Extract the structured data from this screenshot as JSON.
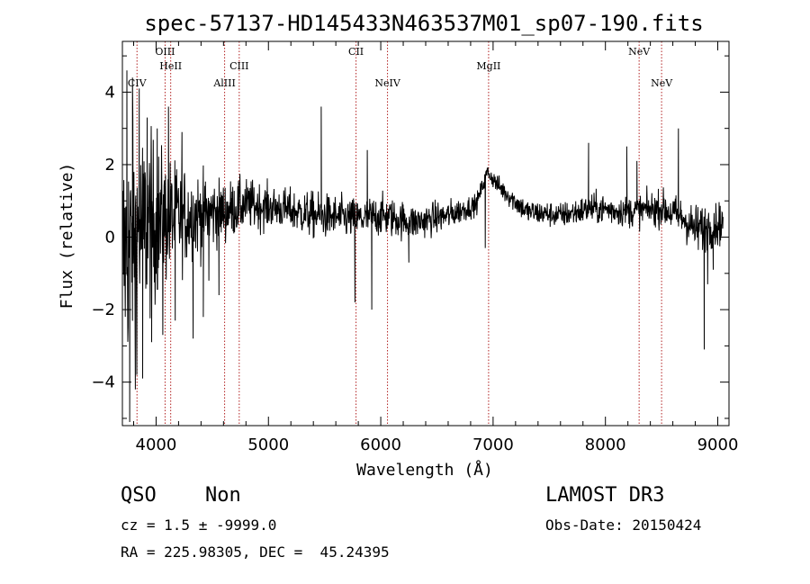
{
  "chart_data": {
    "type": "line",
    "title": "spec-57137-HD145433N463537M01_sp07-190.fits",
    "xlabel": "Wavelength (Å)",
    "ylabel": "Flux (relative)",
    "xlim": [
      3700,
      9100
    ],
    "ylim": [
      -5.2,
      5.4
    ],
    "xticks": [
      4000,
      5000,
      6000,
      7000,
      8000,
      9000
    ],
    "yticks": [
      -4,
      -2,
      0,
      2,
      4
    ],
    "line_color": "#000000",
    "marker_color": "#b22222",
    "lines": [
      {
        "name": "CIV",
        "wavelength": 3830,
        "label_row": 3
      },
      {
        "name": "OIII",
        "wavelength": 4080,
        "label_row": 1
      },
      {
        "name": "HeII",
        "wavelength": 4130,
        "label_row": 2
      },
      {
        "name": "AlIII",
        "wavelength": 4610,
        "label_row": 3
      },
      {
        "name": "CIII",
        "wavelength": 4740,
        "label_row": 2
      },
      {
        "name": "CII",
        "wavelength": 5780,
        "label_row": 1
      },
      {
        "name": "NeIV",
        "wavelength": 6060,
        "label_row": 3
      },
      {
        "name": "MgII",
        "wavelength": 6960,
        "label_row": 2
      },
      {
        "name": "NeV",
        "wavelength": 8300,
        "label_row": 1
      },
      {
        "name": "NeV",
        "wavelength": 8500,
        "label_row": 3
      }
    ],
    "spectrum_anchors": [
      [
        3700,
        -0.5,
        2.4
      ],
      [
        3900,
        0.3,
        1.9
      ],
      [
        4100,
        0.5,
        1.2
      ],
      [
        4300,
        0.6,
        0.9
      ],
      [
        4600,
        0.7,
        0.6
      ],
      [
        4800,
        0.9,
        0.5
      ],
      [
        5100,
        0.8,
        0.4
      ],
      [
        5400,
        0.6,
        0.45
      ],
      [
        5800,
        0.5,
        0.4
      ],
      [
        6000,
        0.6,
        0.4
      ],
      [
        6300,
        0.4,
        0.35
      ],
      [
        6600,
        0.6,
        0.3
      ],
      [
        6850,
        0.9,
        0.2
      ],
      [
        6950,
        1.8,
        0.15
      ],
      [
        7050,
        1.4,
        0.2
      ],
      [
        7300,
        0.7,
        0.25
      ],
      [
        7600,
        0.6,
        0.25
      ],
      [
        7900,
        0.8,
        0.3
      ],
      [
        8200,
        0.7,
        0.3
      ],
      [
        8500,
        0.8,
        0.35
      ],
      [
        8700,
        0.5,
        0.4
      ],
      [
        8800,
        0.2,
        0.5
      ],
      [
        9050,
        0.4,
        0.4
      ]
    ],
    "spectrum_spikes": [
      [
        3740,
        4.6
      ],
      [
        3765,
        -5.1
      ],
      [
        3790,
        4.4
      ],
      [
        3815,
        -4.2
      ],
      [
        3850,
        4.1
      ],
      [
        3880,
        -3.9
      ],
      [
        3920,
        3.3
      ],
      [
        3960,
        -2.9
      ],
      [
        4010,
        3.0
      ],
      [
        4060,
        -2.7
      ],
      [
        4110,
        3.6
      ],
      [
        4170,
        -2.3
      ],
      [
        4230,
        2.9
      ],
      [
        4330,
        -2.8
      ],
      [
        4420,
        -2.2
      ],
      [
        4470,
        -1.2
      ],
      [
        4560,
        -1.6
      ],
      [
        5470,
        3.6
      ],
      [
        5770,
        -1.8
      ],
      [
        5880,
        2.4
      ],
      [
        5920,
        -2.0
      ],
      [
        6250,
        -0.7
      ],
      [
        6930,
        -0.3
      ],
      [
        7850,
        2.6
      ],
      [
        8190,
        2.5
      ],
      [
        8280,
        2.1
      ],
      [
        8650,
        3.0
      ],
      [
        8880,
        -3.1
      ],
      [
        8910,
        -1.3
      ],
      [
        8960,
        -0.9
      ]
    ]
  },
  "info": {
    "class": "QSO",
    "subclass": "Non",
    "survey": "LAMOST DR3",
    "cz": "cz = 1.5 ± -9999.0",
    "obs_date": "Obs-Date: 20150424",
    "coords": "RA = 225.98305, DEC =  45.24395"
  }
}
